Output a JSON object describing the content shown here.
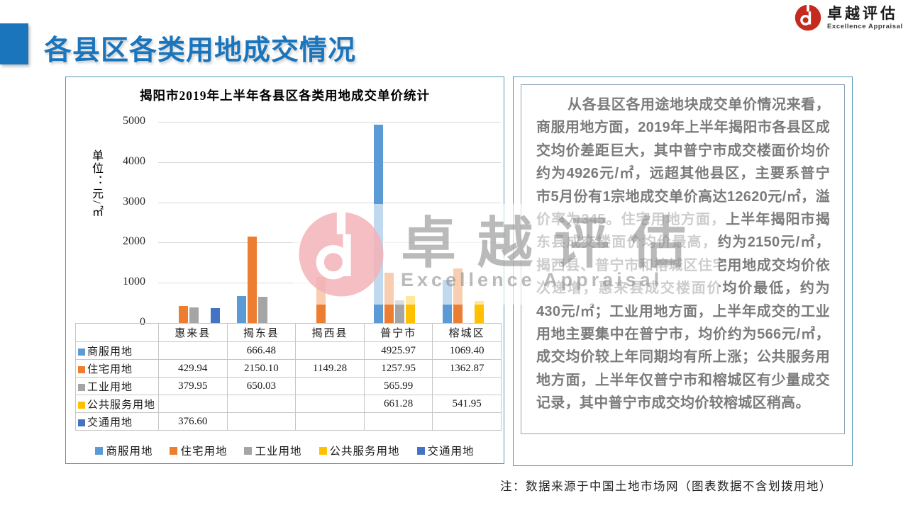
{
  "page": {
    "title": "各县区各类用地成交情况",
    "note": "注：数据来源于中国土地市场网（图表数据不含划拨用地）",
    "accent_color": "#1B75BC",
    "panel_border_color": "#4E97B0"
  },
  "brand": {
    "name_cn": "卓越评估",
    "name_en": "Excellence Appraisal",
    "logo_color": "#C42A1E"
  },
  "watermark": {
    "name_cn": "卓越评估",
    "name_en": "Excellence Appraisal"
  },
  "analysis": {
    "text": "从各县区各用途地块成交单价情况来看，商服用地方面，2019年上半年揭阳市各县区成交均价差距巨大，其中普宁市成交楼面价均价约为4926元/㎡，远超其他县区，主要系普宁市5月份有1宗地成交单价高达12620元/㎡，溢价率为345。住宅用地方面，上半年揭阳市揭东县成交楼面价均价最高，约为2150元/㎡，揭西县、普宁市和榕城区住宅用地成交均价依次递增，惠来县成交楼面价均价最低，约为430元/㎡；工业用地方面，上半年成交的工业用地主要集中在普宁市，均价约为566元/㎡，成交均价较上年同期均有所上涨；公共服务用地方面，上半年仅普宁市和榕城区有少量成交记录，其中普宁市成交均价较榕城区稍高。"
  },
  "chart_data": {
    "type": "bar",
    "title": "揭阳市2019年上半年各县区各类用地成交单价统计",
    "ylabel": "单位：元/㎡",
    "xlabel": "",
    "categories": [
      "惠来县",
      "揭东县",
      "揭西县",
      "普宁市",
      "榕城区"
    ],
    "series": [
      {
        "name": "商服用地",
        "color": "#5B9BD5",
        "values": [
          null,
          666.48,
          null,
          4925.97,
          1069.4
        ],
        "display": [
          "",
          "666.48",
          "",
          "4925.97",
          "1069.40"
        ]
      },
      {
        "name": "住宅用地",
        "color": "#ED7D31",
        "values": [
          429.94,
          2150.1,
          1149.28,
          1257.95,
          1362.87
        ],
        "display": [
          "429.94",
          "2150.10",
          "1149.28",
          "1257.95",
          "1362.87"
        ]
      },
      {
        "name": "工业用地",
        "color": "#A5A5A5",
        "values": [
          379.95,
          650.03,
          null,
          565.99,
          null
        ],
        "display": [
          "379.95",
          "650.03",
          "",
          "565.99",
          ""
        ]
      },
      {
        "name": "公共服务用地",
        "color": "#FFC000",
        "values": [
          null,
          null,
          null,
          661.28,
          541.95
        ],
        "display": [
          "",
          "",
          "",
          "661.28",
          "541.95"
        ]
      },
      {
        "name": "交通用地",
        "color": "#4472C4",
        "values": [
          376.6,
          null,
          null,
          null,
          null
        ],
        "display": [
          "376.60",
          "",
          "",
          "",
          ""
        ]
      }
    ],
    "ylim": [
      0,
      5000
    ],
    "yticks": [
      0,
      1000,
      2000,
      3000,
      4000,
      5000
    ],
    "grid": true,
    "legend_position": "bottom",
    "data_table_shown": true
  }
}
